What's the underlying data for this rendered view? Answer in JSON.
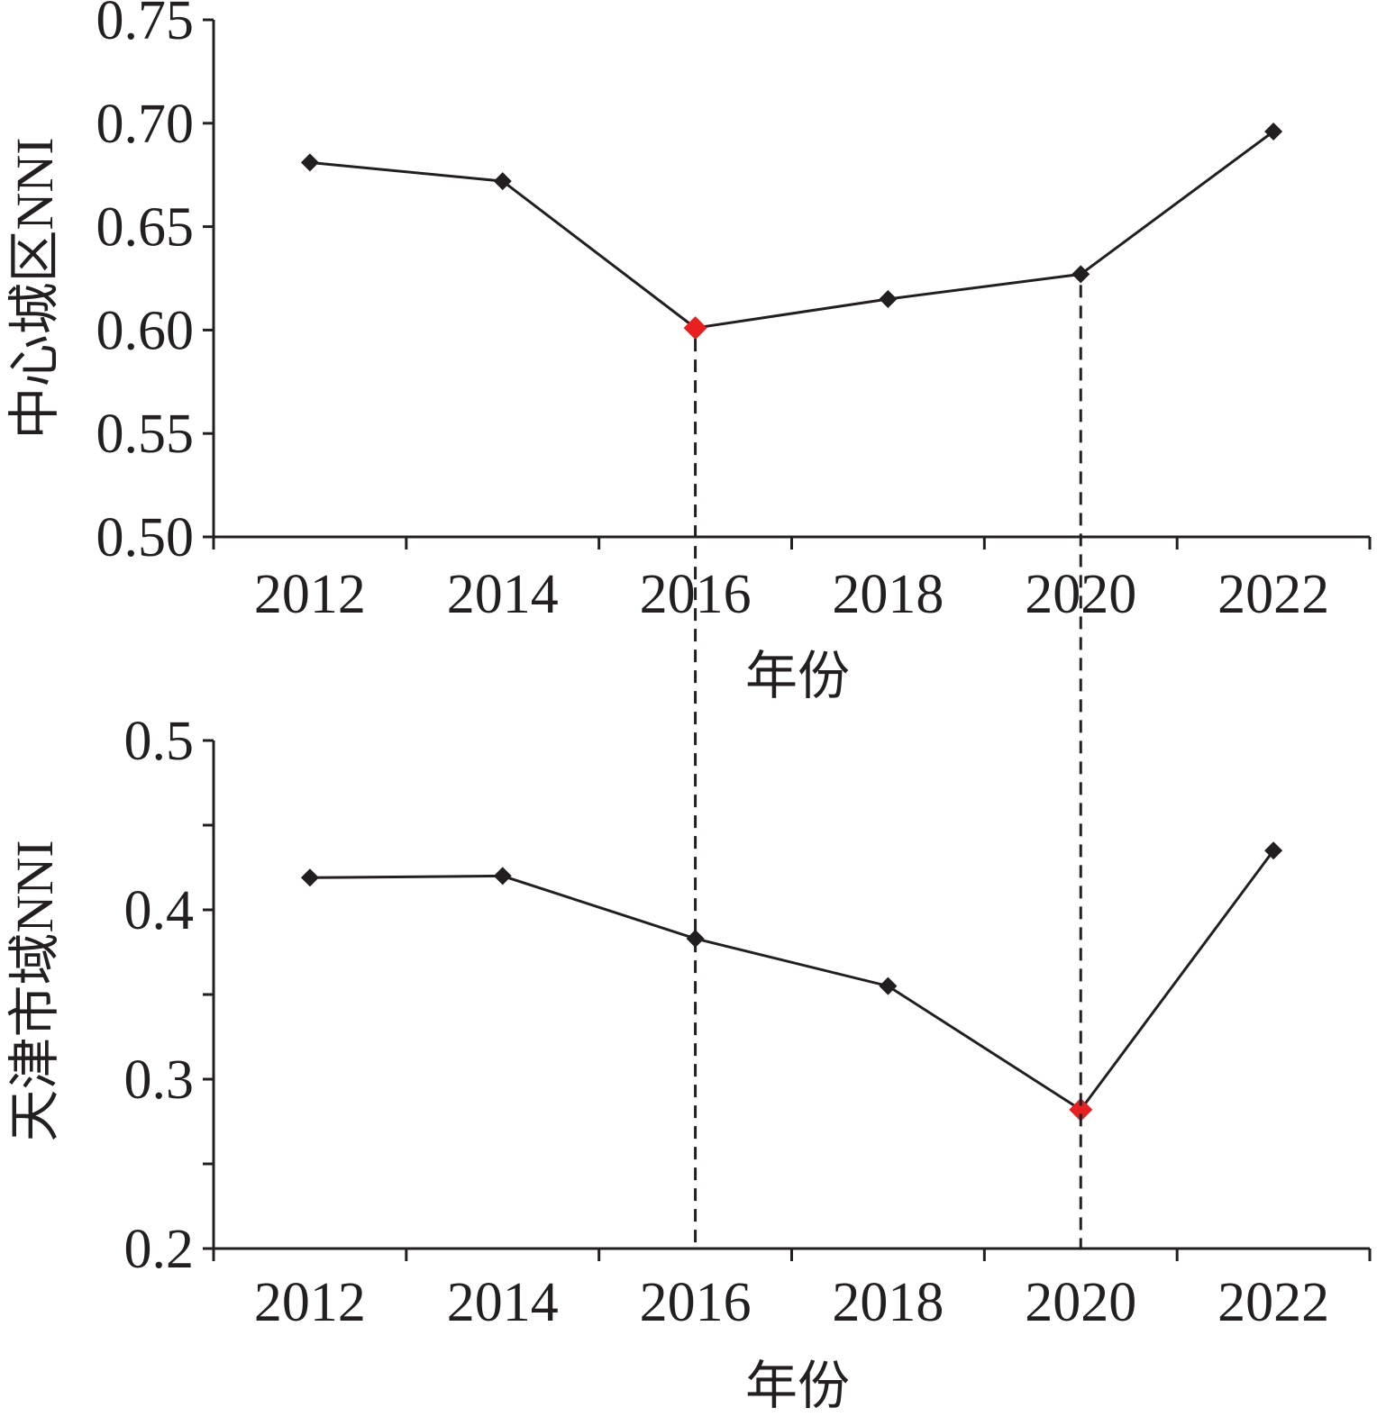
{
  "chart_data": [
    {
      "type": "line",
      "title": "",
      "xlabel": "年份",
      "ylabel": "中心城区NNI",
      "categories": [
        "2012",
        "2014",
        "2016",
        "2018",
        "2020",
        "2022"
      ],
      "values": [
        0.681,
        0.672,
        0.601,
        0.615,
        0.627,
        0.696
      ],
      "highlight_index": 2,
      "ylim": [
        0.5,
        0.75
      ],
      "yticks": [
        "0.50",
        "0.55",
        "0.60",
        "0.65",
        "0.70",
        "0.75"
      ],
      "ytick_values": [
        0.5,
        0.55,
        0.6,
        0.65,
        0.7,
        0.75
      ],
      "minor_yticks": [],
      "grid": false
    },
    {
      "type": "line",
      "title": "",
      "xlabel": "年份",
      "ylabel": "天津市域NNI",
      "categories": [
        "2012",
        "2014",
        "2016",
        "2018",
        "2020",
        "2022"
      ],
      "values": [
        0.419,
        0.42,
        0.383,
        0.355,
        0.282,
        0.435
      ],
      "highlight_index": 4,
      "ylim": [
        0.2,
        0.5
      ],
      "yticks": [
        "0.2",
        "0.3",
        "0.4",
        "0.5"
      ],
      "ytick_values": [
        0.2,
        0.3,
        0.4,
        0.5
      ],
      "minor_yticks": [
        0.25,
        0.35,
        0.45
      ],
      "grid": false
    }
  ],
  "reference_lines": [
    "2016",
    "2020"
  ],
  "colors": {
    "line": "#231f20",
    "marker": "#231f20",
    "highlight": "#e8201f"
  }
}
